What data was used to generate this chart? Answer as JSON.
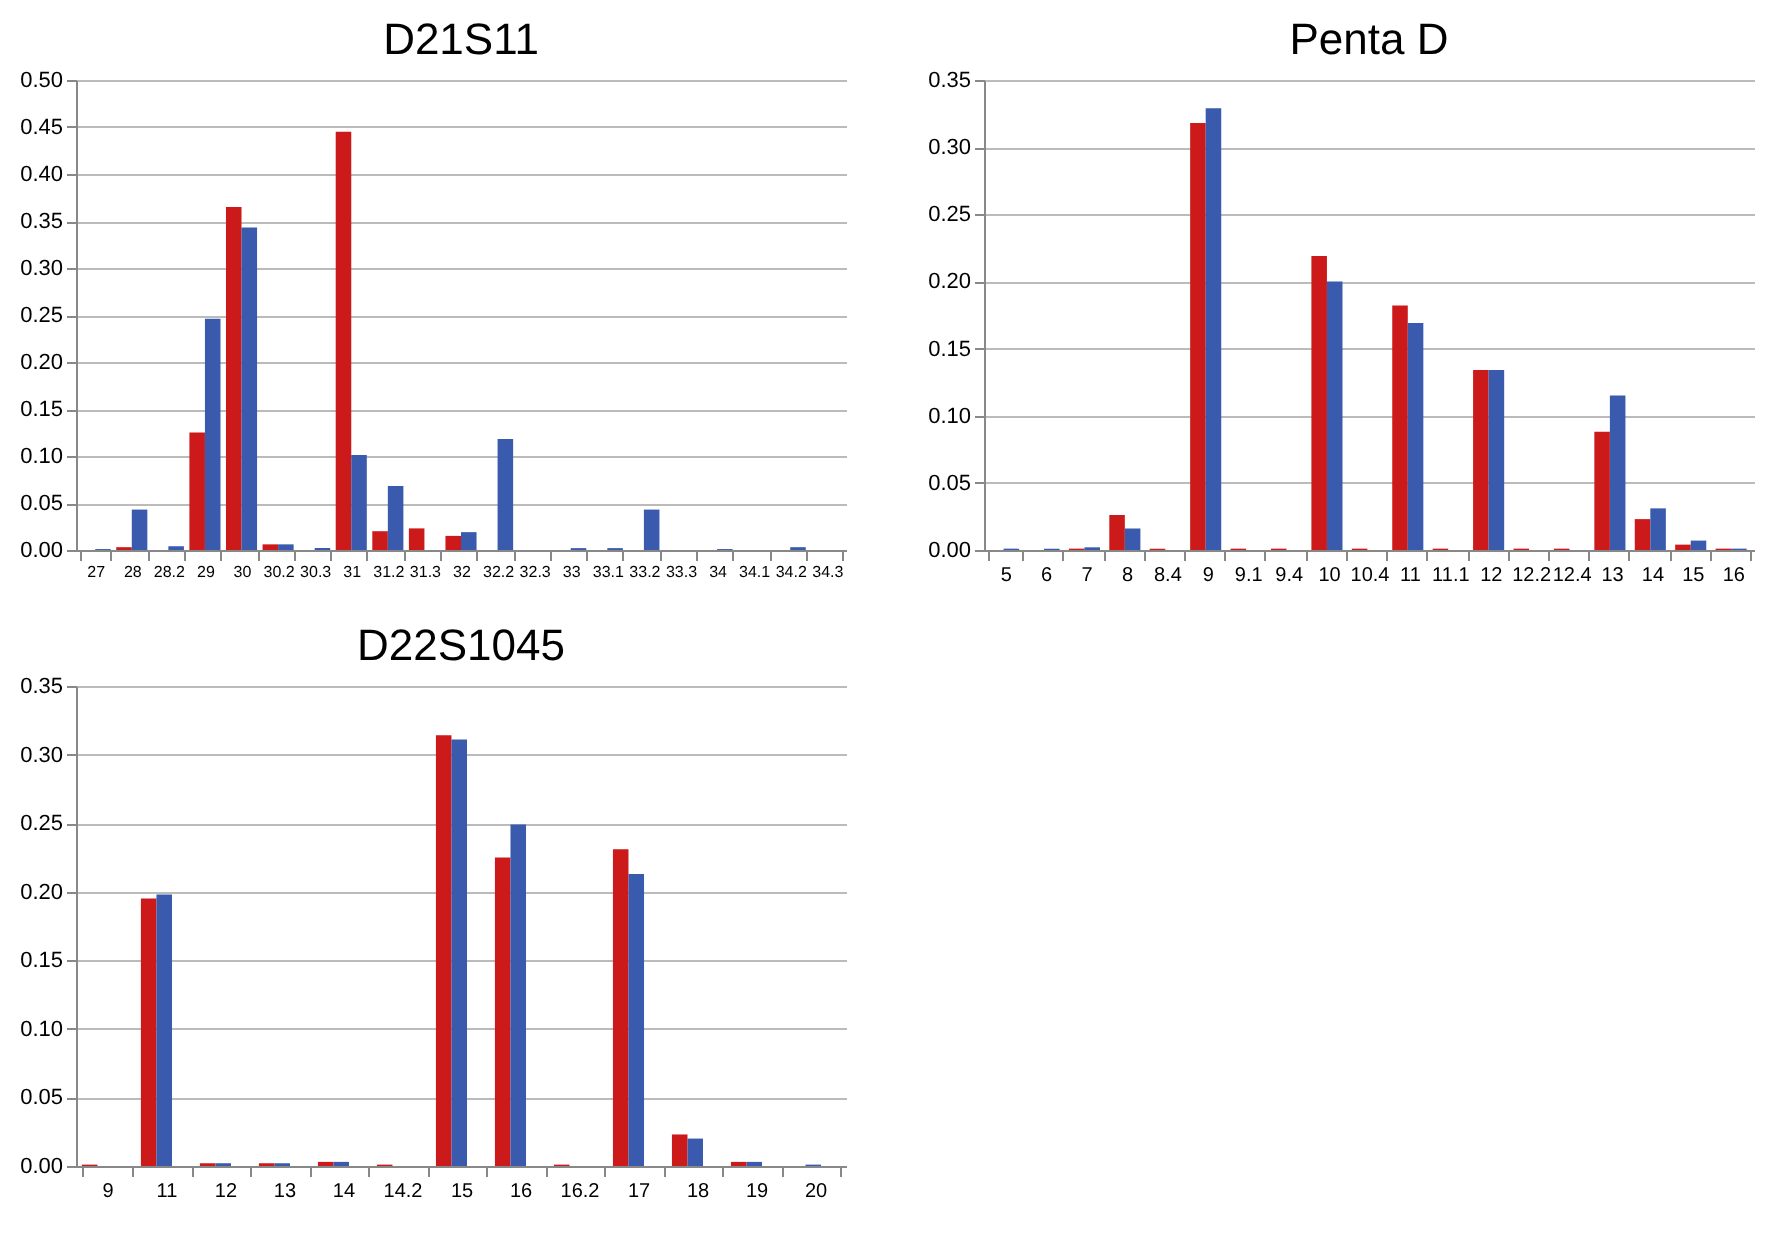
{
  "chart_data": [
    {
      "type": "bar",
      "title": "D21S11",
      "categories": [
        "27",
        "28",
        "28.2",
        "29",
        "30",
        "30.2",
        "30.3",
        "31",
        "31.2",
        "31.3",
        "32",
        "32.2",
        "32.3",
        "33",
        "33.1",
        "33.2",
        "33.3",
        "34",
        "34.1",
        "34.2",
        "34.3"
      ],
      "series": [
        {
          "color": "#cc1a1a",
          "values": [
            null,
            0.003,
            null,
            0.125,
            0.365,
            0.006,
            null,
            0.445,
            0.02,
            0.023,
            0.015,
            null,
            null,
            null,
            null,
            null,
            null,
            null,
            null,
            null,
            null
          ]
        },
        {
          "color": "#3a5aad",
          "values": [
            0.001,
            0.043,
            0.004,
            0.246,
            0.343,
            0.006,
            0.002,
            0.101,
            0.068,
            null,
            0.019,
            0.118,
            null,
            0.002,
            0.002,
            0.043,
            null,
            0.001,
            null,
            0.003,
            null
          ]
        }
      ],
      "ylim": [
        0,
        0.5
      ],
      "yticks": [
        {
          "value": 0,
          "label": "0.00"
        },
        {
          "value": 0.05,
          "label": "0.05"
        },
        {
          "value": 0.1,
          "label": "0.10"
        },
        {
          "value": 0.15,
          "label": "0.15"
        },
        {
          "value": 0.2,
          "label": "0.20"
        },
        {
          "value": 0.25,
          "label": "0.25"
        },
        {
          "value": 0.3,
          "label": "0.30"
        },
        {
          "value": 0.35,
          "label": "0.35"
        },
        {
          "value": 0.4,
          "label": "0.40"
        },
        {
          "value": 0.45,
          "label": "0.45"
        },
        {
          "value": 0.5,
          "label": "0.50"
        }
      ],
      "grid": "y",
      "legend": false
    },
    {
      "type": "bar",
      "title": "Penta D",
      "categories": [
        "5",
        "6",
        "7",
        "8",
        "8.4",
        "9",
        "9.1",
        "9.4",
        "10",
        "10.4",
        "11",
        "11.1",
        "12",
        "12.2",
        "12.4",
        "13",
        "14",
        "15",
        "16"
      ],
      "series": [
        {
          "color": "#cc1a1a",
          "values": [
            null,
            null,
            0.001,
            0.026,
            0.001,
            0.318,
            0.001,
            0.001,
            0.219,
            0.001,
            0.182,
            0.001,
            0.134,
            0.001,
            0.001,
            0.088,
            0.023,
            0.004,
            0.001
          ]
        },
        {
          "color": "#3a5aad",
          "values": [
            0.001,
            0.001,
            0.002,
            0.016,
            null,
            0.329,
            null,
            null,
            0.2,
            null,
            0.169,
            null,
            0.134,
            null,
            null,
            0.115,
            0.031,
            0.007,
            0.001
          ]
        }
      ],
      "ylim": [
        0,
        0.35
      ],
      "yticks": [
        {
          "value": 0,
          "label": "0.00"
        },
        {
          "value": 0.05,
          "label": "0.05"
        },
        {
          "value": 0.1,
          "label": "0.10"
        },
        {
          "value": 0.15,
          "label": "0.15"
        },
        {
          "value": 0.2,
          "label": "0.20"
        },
        {
          "value": 0.25,
          "label": "0.25"
        },
        {
          "value": 0.3,
          "label": "0.30"
        },
        {
          "value": 0.35,
          "label": "0.35"
        }
      ],
      "grid": "y",
      "legend": false
    },
    {
      "type": "bar",
      "title": "D22S1045",
      "categories": [
        "9",
        "11",
        "12",
        "13",
        "14",
        "14.2",
        "15",
        "16",
        "16.2",
        "17",
        "18",
        "19",
        "20"
      ],
      "series": [
        {
          "color": "#cc1a1a",
          "values": [
            0.001,
            0.195,
            0.002,
            0.002,
            0.003,
            0.001,
            0.314,
            0.225,
            0.001,
            0.231,
            0.023,
            0.003,
            null
          ]
        },
        {
          "color": "#3a5aad",
          "values": [
            null,
            0.198,
            0.002,
            0.002,
            0.003,
            null,
            0.311,
            0.249,
            null,
            0.213,
            0.02,
            0.003,
            0.001
          ]
        }
      ],
      "ylim": [
        0,
        0.35
      ],
      "yticks": [
        {
          "value": 0,
          "label": "0.00"
        },
        {
          "value": 0.05,
          "label": "0.05"
        },
        {
          "value": 0.1,
          "label": "0.10"
        },
        {
          "value": 0.15,
          "label": "0.15"
        },
        {
          "value": 0.2,
          "label": "0.20"
        },
        {
          "value": 0.25,
          "label": "0.25"
        },
        {
          "value": 0.3,
          "label": "0.30"
        },
        {
          "value": 0.35,
          "label": "0.35"
        }
      ],
      "grid": "y",
      "legend": false
    }
  ]
}
